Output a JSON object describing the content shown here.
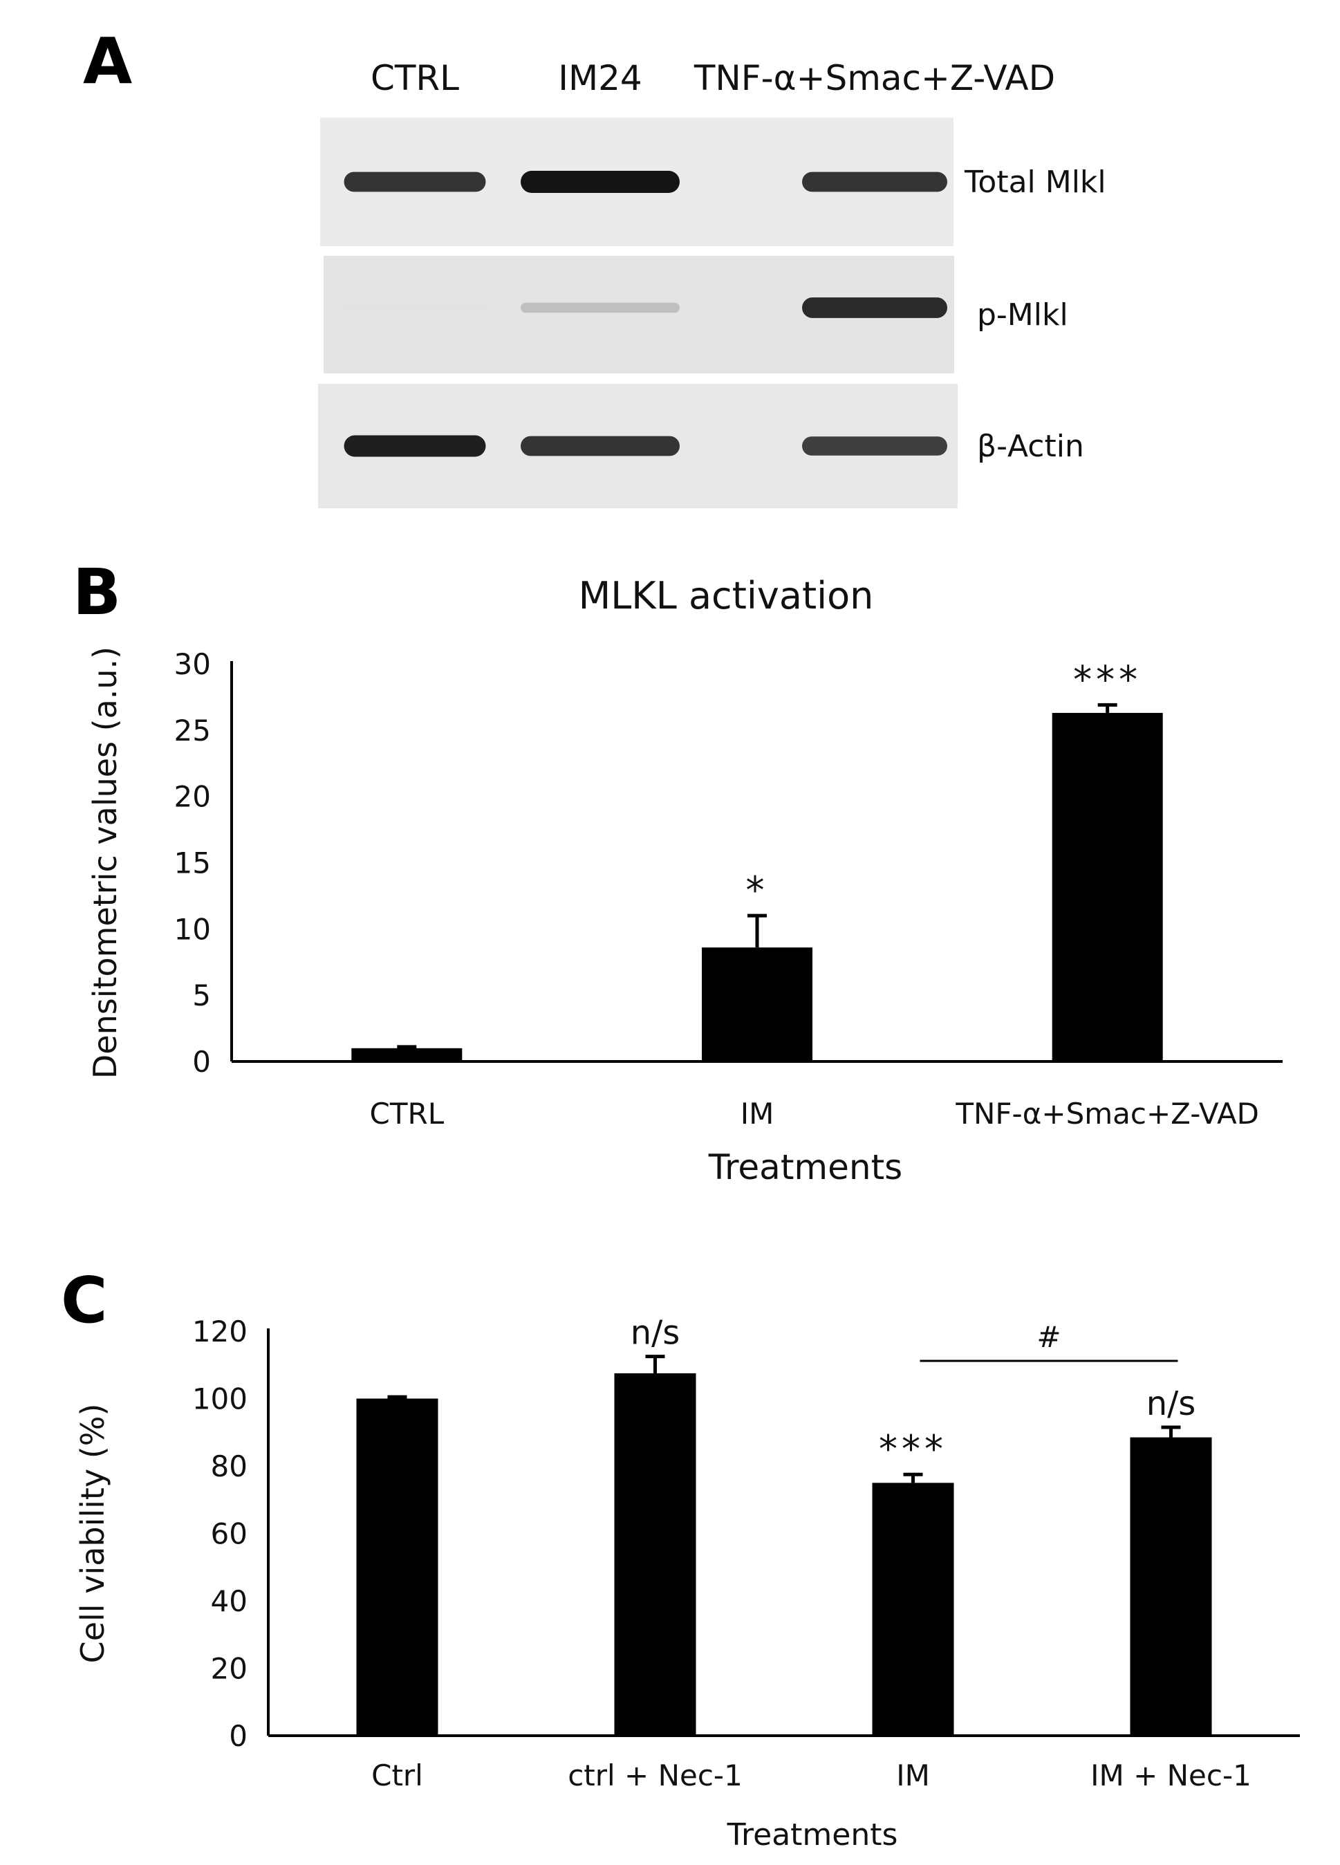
{
  "panels": {
    "a_letter": "A",
    "b_letter": "B",
    "c_letter": "C"
  },
  "western_blot": {
    "lanes": [
      "CTRL",
      "IM24",
      "TNF-α+Smac+Z-VAD"
    ],
    "rows": [
      {
        "label": "Total Mlkl",
        "intensities": [
          0.85,
          1.0,
          0.85
        ]
      },
      {
        "label": "p-Mlkl",
        "intensities": [
          0.04,
          0.2,
          0.9
        ]
      },
      {
        "label": "β-Actin",
        "intensities": [
          0.95,
          0.85,
          0.8
        ]
      }
    ]
  },
  "chart_data": [
    {
      "type": "bar",
      "title": "MLKL activation",
      "xlabel": "Treatments",
      "ylabel": "Densitometric values (a.u.)",
      "ylim": [
        0,
        30
      ],
      "yticks": [
        "0",
        "5",
        "10",
        "15",
        "20",
        "25",
        "30"
      ],
      "categories": [
        "CTRL",
        "IM",
        "TNF-α+Smac+Z-VAD"
      ],
      "values": [
        1.0,
        8.6,
        26.3
      ],
      "errors": [
        0.1,
        2.4,
        0.6
      ],
      "annotations": [
        "",
        "*",
        "***"
      ],
      "grid": false,
      "bar_color": "#000000"
    },
    {
      "type": "bar",
      "title": "",
      "xlabel": "Treatments",
      "ylabel": "Cell viability (%)",
      "ylim": [
        0,
        120
      ],
      "yticks": [
        "0",
        "20",
        "40",
        "60",
        "80",
        "100",
        "120"
      ],
      "categories": [
        "Ctrl",
        "ctrl + Nec-1",
        "IM",
        "IM + Nec-1"
      ],
      "values": [
        100,
        107.5,
        75,
        88.5
      ],
      "errors": [
        0.5,
        5,
        2.5,
        3
      ],
      "annotations": [
        "",
        "n/s",
        "***",
        "n/s"
      ],
      "comparison": {
        "from": 2,
        "to": 3,
        "label": "#"
      },
      "grid": false,
      "bar_color": "#000000"
    }
  ]
}
